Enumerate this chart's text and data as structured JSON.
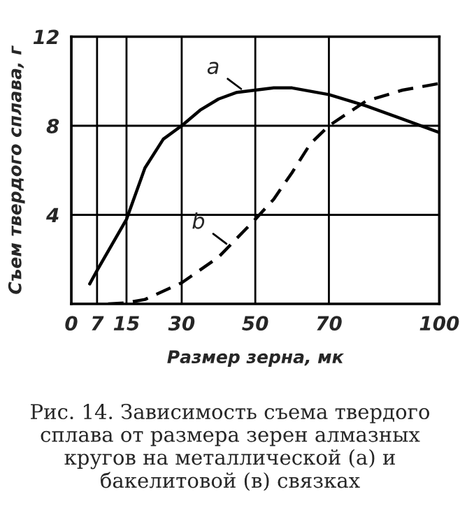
{
  "chart_data": {
    "type": "line",
    "xlabel": "Размер зерна, мк",
    "ylabel": "Съем твердого сплава, г",
    "xlim": [
      0,
      100
    ],
    "xticks": [
      0,
      7,
      15,
      30,
      50,
      70,
      100
    ],
    "ylim": [
      0,
      12
    ],
    "yticks": [
      {
        "value": 0,
        "label": null
      },
      4,
      8,
      12
    ],
    "grid": true,
    "marker": "none",
    "series": [
      {
        "color": "#000000",
        "line_style": "solid",
        "x": [
          5,
          7,
          15,
          20,
          25,
          30,
          35,
          40,
          45,
          50,
          55,
          60,
          70,
          80,
          90,
          100
        ],
        "values": [
          0.9,
          1.5,
          3.8,
          6.1,
          7.4,
          8.0,
          8.7,
          9.2,
          9.5,
          9.6,
          9.7,
          9.7,
          9.4,
          8.9,
          8.3,
          7.7
        ]
      },
      {
        "color": "#000000",
        "line_style": "dashed",
        "x": [
          10,
          15,
          20,
          30,
          40,
          50,
          55,
          60,
          65,
          70,
          80,
          90,
          100
        ],
        "values": [
          0,
          0.05,
          0.2,
          0.95,
          2.1,
          3.8,
          4.7,
          5.9,
          7.2,
          8.0,
          9.1,
          9.6,
          9.9
        ]
      }
    ],
    "annotations": [
      {
        "text": "a",
        "x": 47,
        "y": 9.55
      },
      {
        "text": "b",
        "x": 43,
        "y": 2.6
      },
      "Рис. 14. Зависимость съема твердого сплава от размера зерен алмазных кругов на металлической (а) и бакелитовой (в) связках"
    ]
  }
}
